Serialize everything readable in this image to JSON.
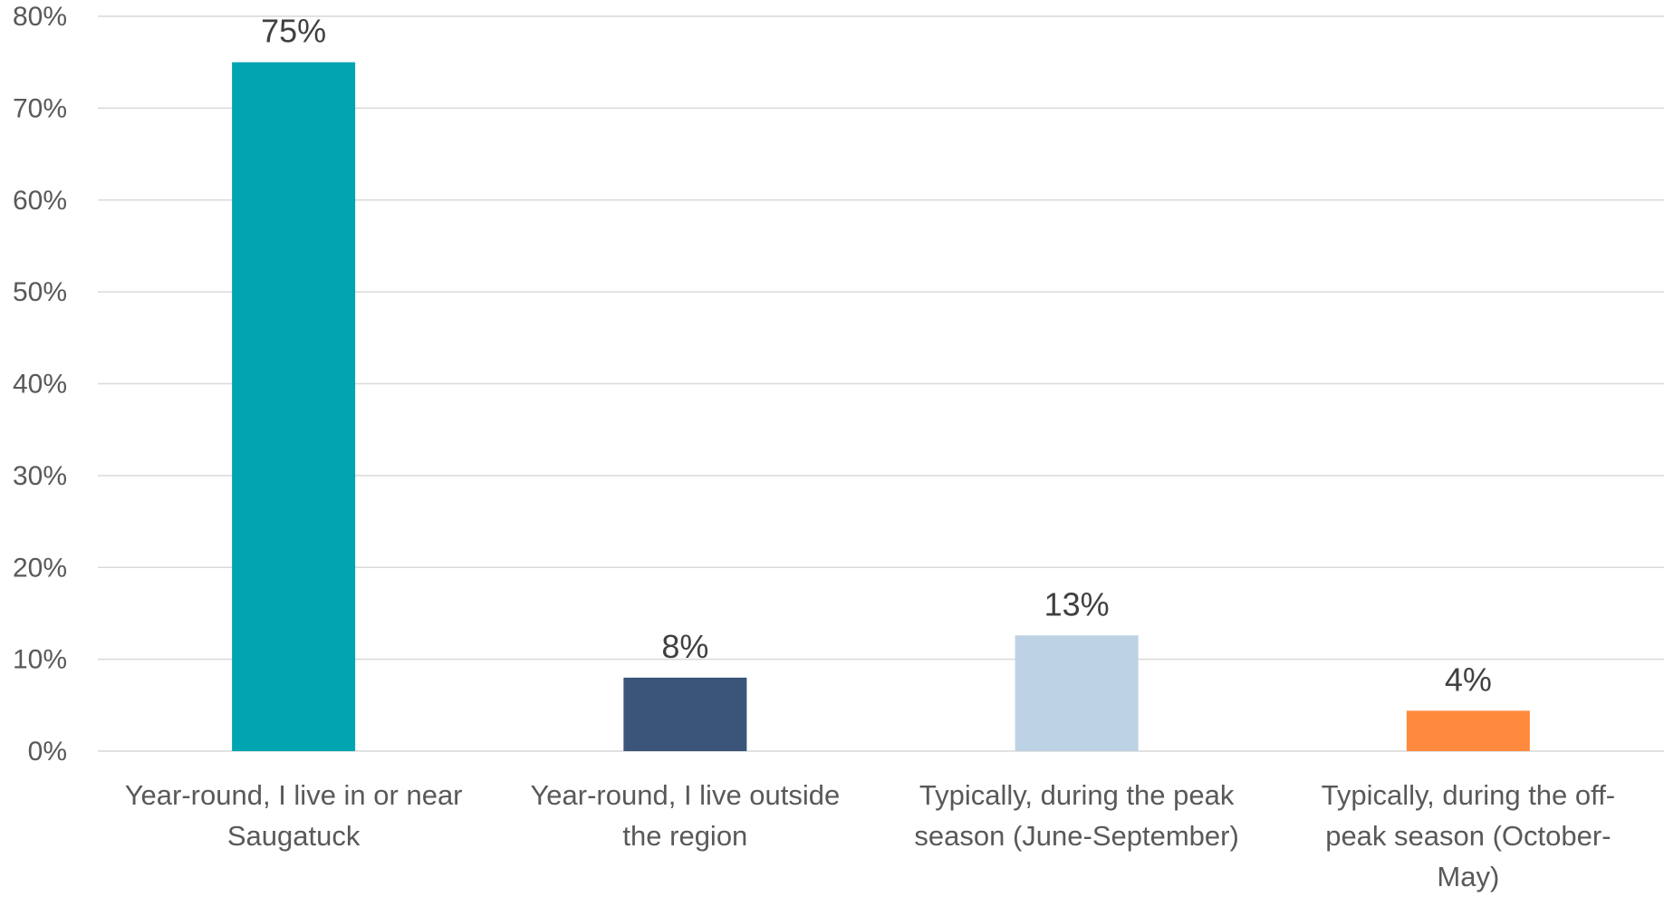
{
  "chart_data": {
    "type": "bar",
    "categories": [
      [
        "Year-round, I live in or near",
        "Saugatuck"
      ],
      [
        "Year-round, I live outside",
        "the region"
      ],
      [
        "Typically, during the peak",
        "season (June-September)"
      ],
      [
        "Typically, during the off-",
        "peak season (October-",
        "May)"
      ]
    ],
    "values": [
      75,
      8,
      12.6,
      4.4
    ],
    "data_labels": [
      "75%",
      "8%",
      "13%",
      "4%"
    ],
    "colors": [
      "#00A5B1",
      "#3B5479",
      "#BDD2E4",
      "#FF8A3D"
    ],
    "ylim": [
      0,
      80
    ],
    "yticks": [
      0,
      10,
      20,
      30,
      40,
      50,
      60,
      70,
      80
    ],
    "ytick_labels": [
      "0%",
      "10%",
      "20%",
      "30%",
      "40%",
      "50%",
      "60%",
      "70%",
      "80%"
    ],
    "title": "",
    "xlabel": "",
    "ylabel": "",
    "grid": true,
    "legend": "none"
  }
}
